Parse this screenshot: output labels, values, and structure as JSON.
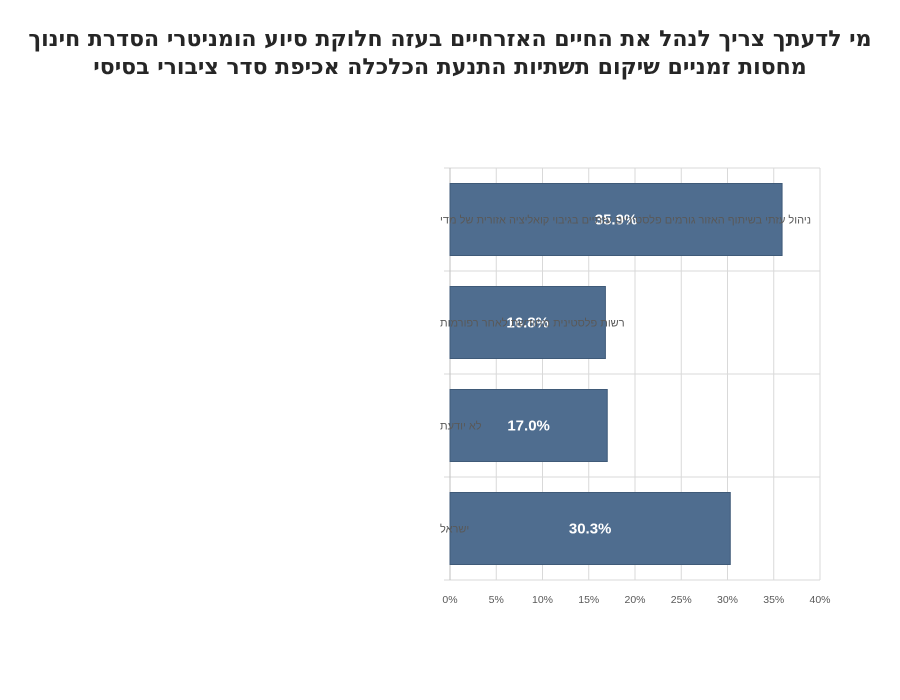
{
  "title_lines": [
    "מי לדעתך צריך לנהל את החיים האזרחיים בעזה  חלוקת סיוע הומניטרי הסדרת חינוך",
    "מחסות זמניים שיקום תשתיות התנעת הכלכלה אכיפת סדר ציבורי בסיסי"
  ],
  "chart_data": {
    "type": "bar",
    "orientation": "horizontal",
    "categories": [
      "ניהול עזתי בשיתוף האזור  גורמים פלסטיניים עזתיים בגיבוי קואליציה אזורית של מדי",
      "רשות פלסטינית מחודשת לאחר רפורמות",
      "לא יודעת",
      "ישראל"
    ],
    "values": [
      35.9,
      16.8,
      17.0,
      30.3
    ],
    "data_labels": [
      "35.9%",
      "16.8%",
      "17.0%",
      "30.3%"
    ],
    "xlim": [
      0,
      40
    ],
    "x_ticks": [
      0,
      5,
      10,
      15,
      20,
      25,
      30,
      35,
      40
    ],
    "x_tick_labels": [
      "0%",
      "5%",
      "10%",
      "15%",
      "20%",
      "25%",
      "30%",
      "35%",
      "40%"
    ],
    "grid": true,
    "legend": false,
    "bar_color": "#4f6d8f",
    "bar_edge_color": "#3f5a78",
    "grid_color": "#d9d9d9",
    "axis_color": "#bfbfbf"
  }
}
